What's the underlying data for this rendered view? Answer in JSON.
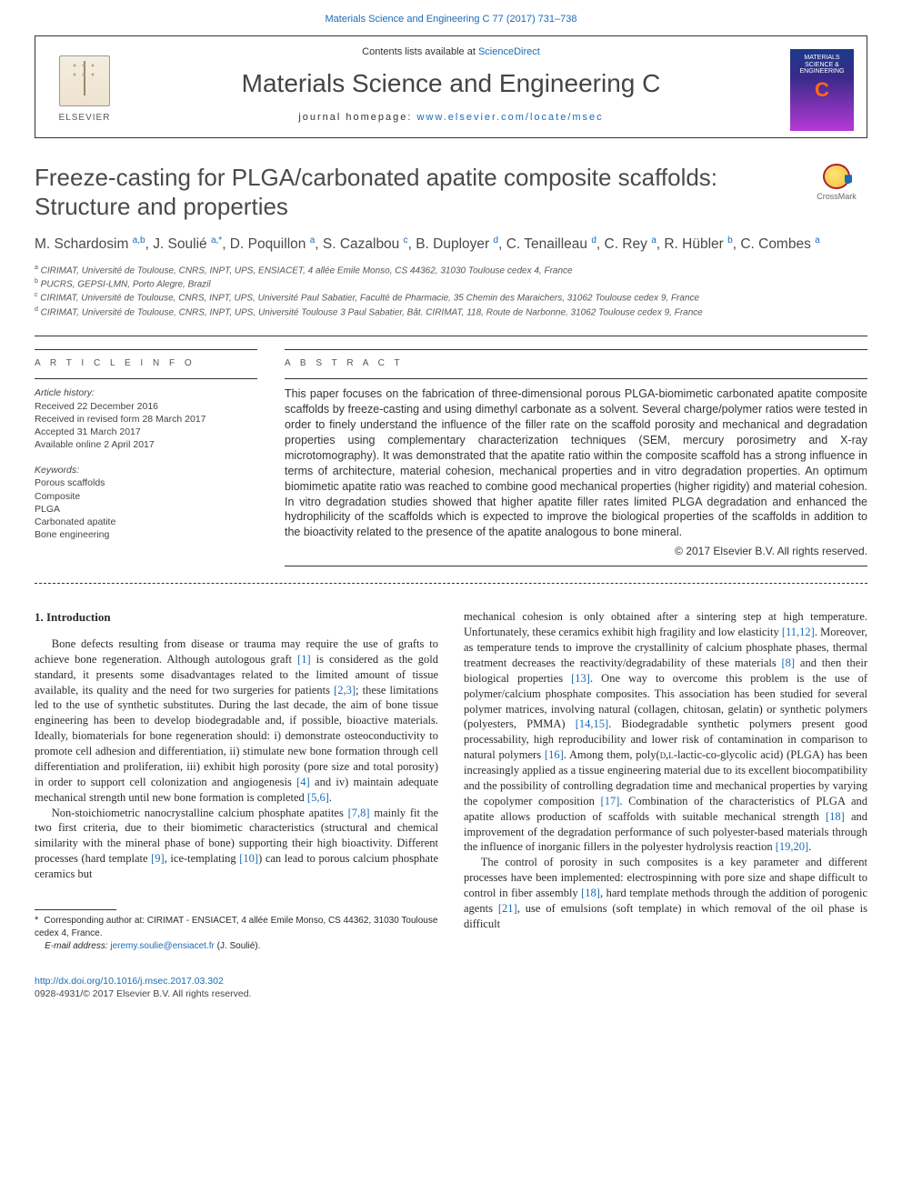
{
  "colors": {
    "link": "#1a6bb8",
    "text": "#333333",
    "accent_orange": "#ff6a1a",
    "cover_gradient": [
      "#1a3a8a",
      "#3a2a8a",
      "#b53ad6"
    ]
  },
  "top_citation": "Materials Science and Engineering C 77 (2017) 731–738",
  "header": {
    "contents_prefix": "Contents lists available at ",
    "contents_link": "ScienceDirect",
    "journal": "Materials Science and Engineering C",
    "homepage_prefix": "journal homepage: ",
    "homepage_url": "www.elsevier.com/locate/msec",
    "publisher_word": "ELSEVIER",
    "cover_lines": [
      "MATERIALS",
      "SCIENCE &",
      "ENGINEERING"
    ],
    "cover_letter": "C"
  },
  "crossmark_label": "CrossMark",
  "title": "Freeze-casting for PLGA/carbonated apatite composite scaffolds: Structure and properties",
  "authors_html": "M. Schardosim <sup>a,b</sup>, J. Soulié <sup>a,*</sup>, D. Poquillon <sup>a</sup>, S. Cazalbou <sup>c</sup>, B. Duployer <sup>d</sup>, C. Tenailleau <sup>d</sup>, C. Rey <sup>a</sup>, R. Hübler <sup>b</sup>, C. Combes <sup>a</sup>",
  "affiliations": [
    "a  CIRIMAT, Université de Toulouse, CNRS, INPT, UPS, ENSIACET, 4 allée Emile Monso, CS 44362, 31030 Toulouse cedex 4, France",
    "b  PUCRS, GEPSI-LMN, Porto Alegre, Brazil",
    "c  CIRIMAT, Université de Toulouse, CNRS, INPT, UPS, Université Paul Sabatier, Faculté de Pharmacie, 35 Chemin des Maraichers, 31062 Toulouse cedex 9, France",
    "d  CIRIMAT, Université de Toulouse, CNRS, INPT, UPS, Université Toulouse 3 Paul Sabatier, Bât. CIRIMAT, 118, Route de Narbonne, 31062 Toulouse cedex 9, France"
  ],
  "info": {
    "heading": "A R T I C L E   I N F O",
    "history_label": "Article history:",
    "history": [
      "Received 22 December 2016",
      "Received in revised form 28 March 2017",
      "Accepted 31 March 2017",
      "Available online 2 April 2017"
    ],
    "keywords_label": "Keywords:",
    "keywords": [
      "Porous scaffolds",
      "Composite",
      "PLGA",
      "Carbonated apatite",
      "Bone engineering"
    ]
  },
  "abstract": {
    "heading": "A B S T R A C T",
    "text": "This paper focuses on the fabrication of three-dimensional porous PLGA-biomimetic carbonated apatite composite scaffolds by freeze-casting and using dimethyl carbonate as a solvent. Several charge/polymer ratios were tested in order to finely understand the influence of the filler rate on the scaffold porosity and mechanical and degradation properties using complementary characterization techniques (SEM, mercury porosimetry and X-ray microtomography). It was demonstrated that the apatite ratio within the composite scaffold has a strong influence in terms of architecture, material cohesion, mechanical properties and in vitro degradation properties. An optimum biomimetic apatite ratio was reached to combine good mechanical properties (higher rigidity) and material cohesion. In vitro degradation studies showed that higher apatite filler rates limited PLGA degradation and enhanced the hydrophilicity of the scaffolds which is expected to improve the biological properties of the scaffolds in addition to the bioactivity related to the presence of the apatite analogous to bone mineral.",
    "copyright": "© 2017 Elsevier B.V. All rights reserved."
  },
  "intro_heading": "1. Introduction",
  "col1": {
    "p1": "Bone defects resulting from disease or trauma may require the use of grafts to achieve bone regeneration. Although autologous graft [1] is considered as the gold standard, it presents some disadvantages related to the limited amount of tissue available, its quality and the need for two surgeries for patients [2,3]; these limitations led to the use of synthetic substitutes. During the last decade, the aim of bone tissue engineering has been to develop biodegradable and, if possible, bioactive materials. Ideally, biomaterials for bone regeneration should: i) demonstrate osteoconductivity to promote cell adhesion and differentiation, ii) stimulate new bone formation through cell differentiation and proliferation, iii) exhibit high porosity (pore size and total porosity) in order to support cell colonization and angiogenesis [4] and iv) maintain adequate mechanical strength until new bone formation is completed [5,6].",
    "p2": "Non-stoichiometric nanocrystalline calcium phosphate apatites [7,8] mainly fit the two first criteria, due to their biomimetic characteristics (structural and chemical similarity with the mineral phase of bone) supporting their high bioactivity. Different processes (hard template [9], ice-templating [10]) can lead to porous calcium phosphate ceramics but"
  },
  "col2": {
    "p1": "mechanical cohesion is only obtained after a sintering step at high temperature. Unfortunately, these ceramics exhibit high fragility and low elasticity [11,12]. Moreover, as temperature tends to improve the crystallinity of calcium phosphate phases, thermal treatment decreases the reactivity/degradability of these materials [8] and then their biological properties [13]. One way to overcome this problem is the use of polymer/calcium phosphate composites. This association has been studied for several polymer matrices, involving natural (collagen, chitosan, gelatin) or synthetic polymers (polyesters, PMMA) [14,15]. Biodegradable synthetic polymers present good processability, high reproducibility and lower risk of contamination in comparison to natural polymers [16]. Among them, poly(D,L-lactic-co-glycolic acid) (PLGA) has been increasingly applied as a tissue engineering material due to its excellent biocompatibility and the possibility of controlling degradation time and mechanical properties by varying the copolymer composition [17]. Combination of the characteristics of PLGA and apatite allows production of scaffolds with suitable mechanical strength [18] and improvement of the degradation performance of such polyester-based materials through the influence of inorganic fillers in the polyester hydrolysis reaction [19,20].",
    "p2": "The control of porosity in such composites is a key parameter and different processes have been implemented: electrospinning with pore size and shape difficult to control in fiber assembly [18], hard template methods through the addition of porogenic agents [21], use of emulsions (soft template) in which removal of the oil phase is difficult"
  },
  "corresponding": {
    "note": "Corresponding author at: CIRIMAT - ENSIACET, 4 allée Emile Monso, CS 44362, 31030 Toulouse cedex 4, France.",
    "email_label": "E-mail address:",
    "email": "jeremy.soulie@ensiacet.fr",
    "email_paren": "(J. Soulié)."
  },
  "footer": {
    "doi": "http://dx.doi.org/10.1016/j.msec.2017.03.302",
    "issn_line": "0928-4931/© 2017 Elsevier B.V. All rights reserved."
  }
}
